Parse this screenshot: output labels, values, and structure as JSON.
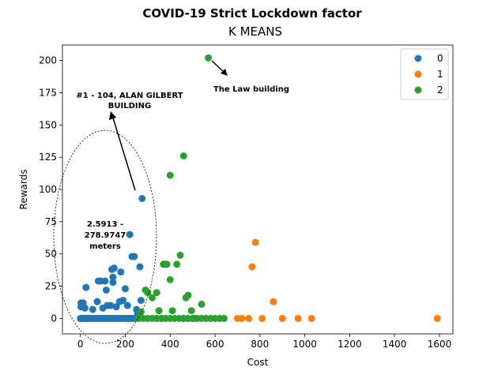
{
  "chart_data": {
    "type": "scatter",
    "title": "COVID-19 Strict Lockdown factor",
    "subtitle": "K MEANS",
    "xlabel": "Cost",
    "ylabel": "Rewards",
    "xlim": [
      -80,
      1660
    ],
    "ylim": [
      -12,
      212
    ],
    "xticks": [
      0,
      200,
      400,
      600,
      800,
      1000,
      1200,
      1400,
      1600
    ],
    "yticks": [
      0,
      25,
      50,
      75,
      100,
      125,
      150,
      175,
      200
    ],
    "grid": false,
    "legend_position": "top-right",
    "colors": {
      "0": "#1f77b4",
      "1": "#ff7f0e",
      "2": "#2ca02c"
    },
    "series": [
      {
        "name": "0",
        "color": "#1f77b4",
        "points": [
          [
            0,
            0
          ],
          [
            5,
            0
          ],
          [
            10,
            0
          ],
          [
            15,
            0
          ],
          [
            20,
            0
          ],
          [
            25,
            0
          ],
          [
            30,
            0
          ],
          [
            35,
            0
          ],
          [
            45,
            0
          ],
          [
            55,
            0
          ],
          [
            65,
            0
          ],
          [
            75,
            0
          ],
          [
            85,
            0
          ],
          [
            95,
            0
          ],
          [
            105,
            0
          ],
          [
            115,
            0
          ],
          [
            125,
            0
          ],
          [
            135,
            0
          ],
          [
            145,
            0
          ],
          [
            155,
            0
          ],
          [
            165,
            0
          ],
          [
            175,
            0
          ],
          [
            185,
            0
          ],
          [
            195,
            0
          ],
          [
            205,
            0
          ],
          [
            215,
            0
          ],
          [
            225,
            0
          ],
          [
            235,
            0
          ],
          [
            245,
            0
          ],
          [
            3,
            9
          ],
          [
            3,
            12
          ],
          [
            12,
            12
          ],
          [
            20,
            8
          ],
          [
            25,
            24
          ],
          [
            55,
            7
          ],
          [
            75,
            13
          ],
          [
            80,
            29
          ],
          [
            90,
            29
          ],
          [
            100,
            8
          ],
          [
            110,
            29
          ],
          [
            115,
            22
          ],
          [
            120,
            10
          ],
          [
            135,
            10
          ],
          [
            140,
            38
          ],
          [
            145,
            32
          ],
          [
            145,
            28
          ],
          [
            150,
            39
          ],
          [
            160,
            9
          ],
          [
            175,
            13
          ],
          [
            190,
            14
          ],
          [
            200,
            23
          ],
          [
            210,
            10
          ],
          [
            230,
            48
          ],
          [
            240,
            48
          ],
          [
            250,
            7
          ],
          [
            255,
            4
          ],
          [
            265,
            40
          ],
          [
            270,
            14
          ],
          [
            275,
            93
          ],
          [
            220,
            65
          ],
          [
            180,
            36
          ]
        ]
      },
      {
        "name": "1",
        "color": "#ff7f0e",
        "points": [
          [
            700,
            0
          ],
          [
            720,
            0
          ],
          [
            750,
            0
          ],
          [
            765,
            40
          ],
          [
            780,
            59
          ],
          [
            810,
            0
          ],
          [
            860,
            13
          ],
          [
            900,
            0
          ],
          [
            970,
            0
          ],
          [
            1030,
            0
          ],
          [
            1590,
            0
          ]
        ]
      },
      {
        "name": "2",
        "color": "#2ca02c",
        "points": [
          [
            260,
            0
          ],
          [
            280,
            0
          ],
          [
            300,
            0
          ],
          [
            320,
            0
          ],
          [
            340,
            0
          ],
          [
            360,
            0
          ],
          [
            380,
            0
          ],
          [
            400,
            0
          ],
          [
            420,
            0
          ],
          [
            440,
            0
          ],
          [
            460,
            0
          ],
          [
            480,
            0
          ],
          [
            500,
            0
          ],
          [
            520,
            0
          ],
          [
            540,
            0
          ],
          [
            560,
            0
          ],
          [
            580,
            0
          ],
          [
            600,
            0
          ],
          [
            620,
            0
          ],
          [
            640,
            0
          ],
          [
            270,
            5
          ],
          [
            290,
            22
          ],
          [
            300,
            20
          ],
          [
            320,
            16
          ],
          [
            340,
            20
          ],
          [
            350,
            6
          ],
          [
            360,
            0
          ],
          [
            370,
            42
          ],
          [
            375,
            42
          ],
          [
            380,
            42
          ],
          [
            385,
            42
          ],
          [
            400,
            30
          ],
          [
            410,
            6
          ],
          [
            430,
            42
          ],
          [
            445,
            49
          ],
          [
            460,
            0
          ],
          [
            470,
            16
          ],
          [
            480,
            18
          ],
          [
            495,
            6
          ],
          [
            510,
            0
          ],
          [
            540,
            11
          ],
          [
            400,
            111
          ],
          [
            460,
            126
          ],
          [
            570,
            202
          ]
        ]
      }
    ],
    "annotations": [
      {
        "text_lines": [
          "#1 - 104, ALAN GILBERT",
          "BUILDING"
        ]
      },
      {
        "text_lines": [
          "The Law building"
        ]
      },
      {
        "text_lines": [
          "2.5913 -",
          "278.9747",
          "meters"
        ]
      }
    ]
  }
}
